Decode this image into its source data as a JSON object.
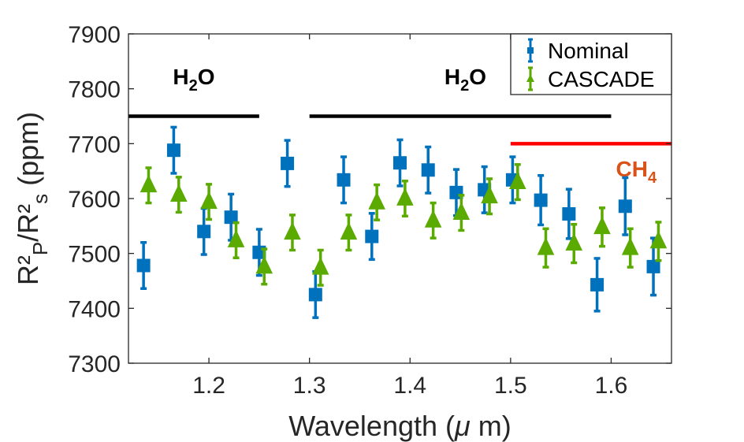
{
  "chart_data": {
    "type": "scatter",
    "xlabel": "Wavelength (μ m)",
    "ylabel": "R²P/R²s (ppm)",
    "ylabel_parts": {
      "base1": "R²",
      "sub1": "P",
      "mid": "/R²",
      "sub2": "s",
      "tail": " (ppm)"
    },
    "xlabel_parts": {
      "pre": "Wavelength (",
      "mu": "μ",
      "post": " m)"
    },
    "xlim": [
      1.12,
      1.66
    ],
    "ylim": [
      7300,
      7900
    ],
    "xticks": [
      1.2,
      1.3,
      1.4,
      1.5,
      1.6
    ],
    "xtick_labels": [
      "1.2",
      "1.3",
      "1.4",
      "1.5",
      "1.6"
    ],
    "yticks": [
      7300,
      7400,
      7500,
      7600,
      7700,
      7800,
      7900
    ],
    "ytick_labels": [
      "7300",
      "7400",
      "7500",
      "7600",
      "7700",
      "7800",
      "7900"
    ],
    "legend": {
      "position": "top-right",
      "entries": [
        "Nominal",
        "CASCADE"
      ]
    },
    "series": [
      {
        "name": "Nominal",
        "color": "#0072BD",
        "marker": "square",
        "x": [
          1.135,
          1.165,
          1.195,
          1.222,
          1.25,
          1.278,
          1.306,
          1.334,
          1.362,
          1.39,
          1.418,
          1.446,
          1.474,
          1.502,
          1.53,
          1.558,
          1.586,
          1.614,
          1.642
        ],
        "y": [
          7478,
          7688,
          7540,
          7566,
          7502,
          7664,
          7425,
          7634,
          7531,
          7665,
          7652,
          7611,
          7616,
          7634,
          7597,
          7572,
          7443,
          7586,
          7476
        ],
        "err": [
          42,
          42,
          42,
          42,
          42,
          42,
          42,
          42,
          42,
          42,
          42,
          42,
          42,
          42,
          45,
          45,
          48,
          52,
          52
        ]
      },
      {
        "name": "CASCADE",
        "color": "#5AAA00",
        "marker": "triangle",
        "x": [
          1.14,
          1.17,
          1.2,
          1.227,
          1.255,
          1.283,
          1.311,
          1.339,
          1.367,
          1.395,
          1.423,
          1.451,
          1.479,
          1.507,
          1.535,
          1.563,
          1.591,
          1.619,
          1.647
        ],
        "y": [
          7624,
          7607,
          7594,
          7524,
          7476,
          7538,
          7474,
          7538,
          7593,
          7600,
          7560,
          7574,
          7604,
          7630,
          7510,
          7518,
          7548,
          7510,
          7522
        ],
        "err": [
          32,
          32,
          32,
          32,
          32,
          32,
          32,
          32,
          32,
          32,
          32,
          32,
          32,
          32,
          35,
          35,
          35,
          35,
          35
        ]
      }
    ],
    "annotations": [
      {
        "label": "H",
        "sub": "2",
        "tail": "O",
        "color": "#000000",
        "text_x": 1.185,
        "text_y": 7808,
        "line_x": [
          1.12,
          1.25
        ],
        "line_y": 7750
      },
      {
        "label": "H",
        "sub": "2",
        "tail": "O",
        "color": "#000000",
        "text_x": 1.455,
        "text_y": 7808,
        "line_x": [
          1.3,
          1.6
        ],
        "line_y": 7750
      },
      {
        "label": "CH",
        "sub": "4",
        "tail": "",
        "color": "#D95319",
        "line_color": "#FF0000",
        "text_x": 1.625,
        "text_y": 7640,
        "line_x": [
          1.5,
          1.66
        ],
        "line_y": 7700
      }
    ]
  }
}
